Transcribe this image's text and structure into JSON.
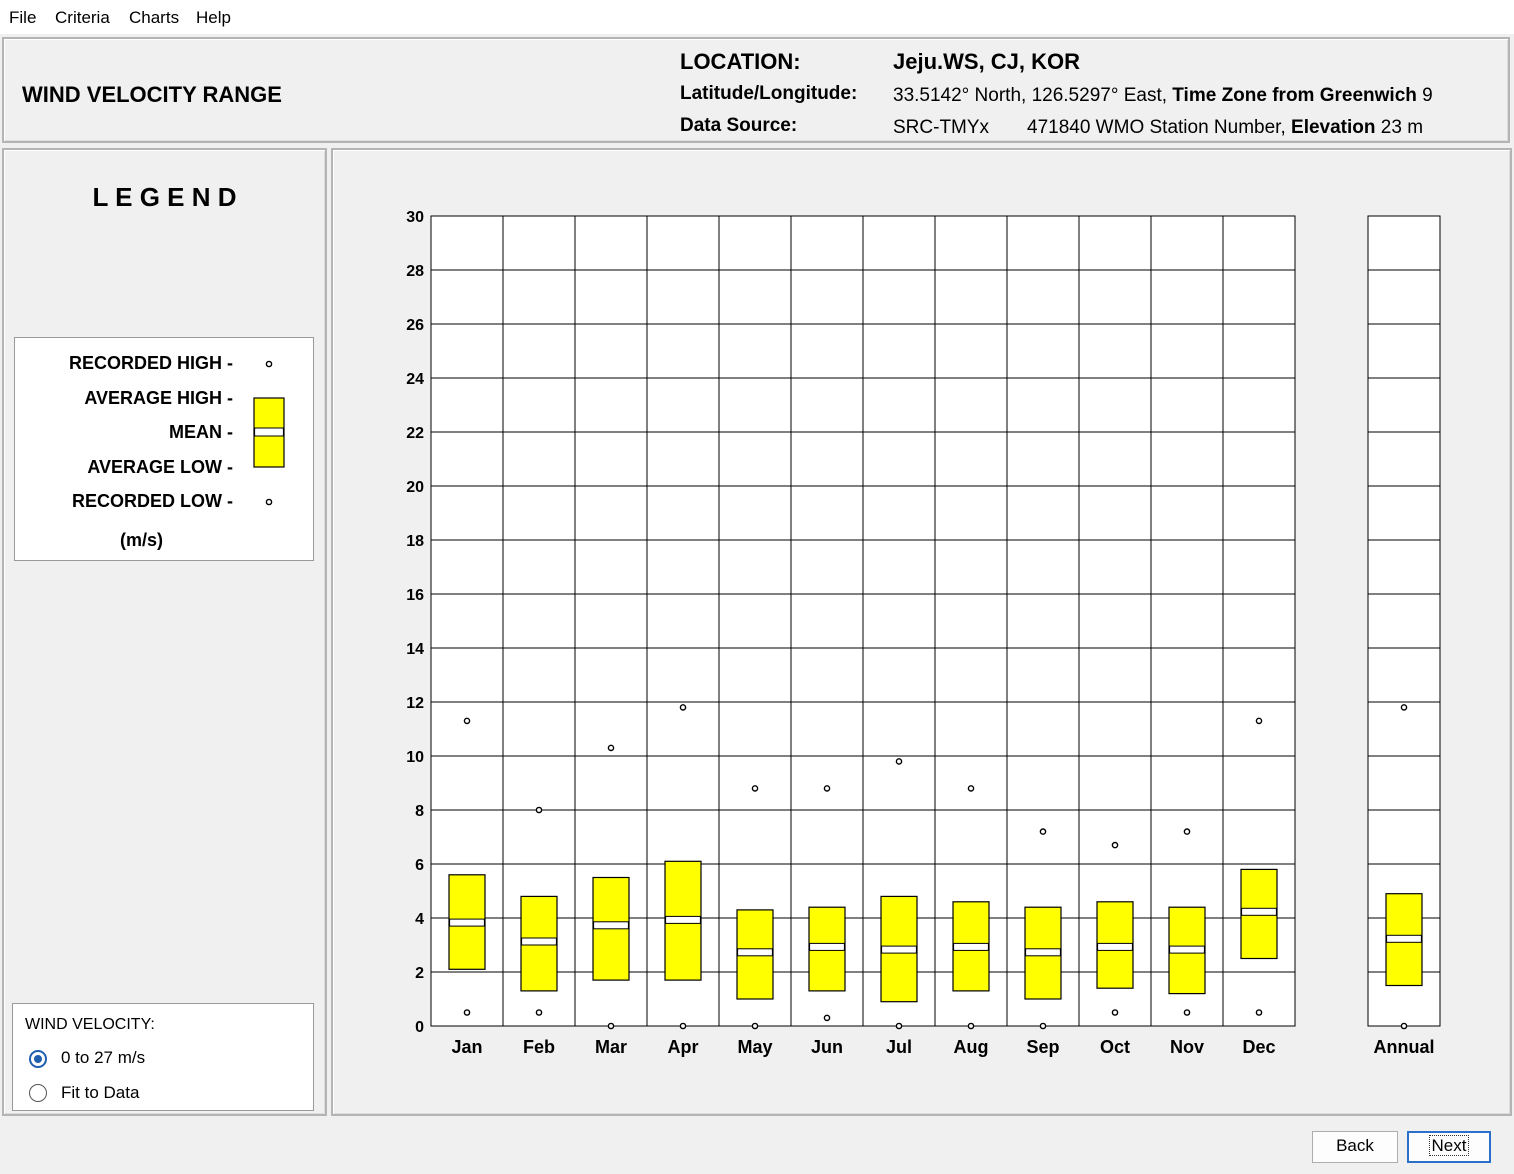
{
  "menu": [
    "File",
    "Criteria",
    "Charts",
    "Help"
  ],
  "header": {
    "title": "WIND VELOCITY RANGE",
    "location_label": "LOCATION:",
    "location_value": "Jeju.WS, CJ, KOR",
    "latlon_label": "Latitude/Longitude:",
    "latlon_value": "33.5142° North, 126.5297° East,",
    "timezone_label": "Time Zone from Greenwich",
    "timezone_value": "9",
    "source_label": "Data Source:",
    "source_value": "SRC-TMYx",
    "station_value": "471840 WMO Station Number,",
    "elevation_label": "Elevation",
    "elevation_value": "23 m"
  },
  "legend": {
    "title": "L E G E N D",
    "recorded_high": "RECORDED HIGH -",
    "average_high": "AVERAGE HIGH -",
    "mean": "MEAN -",
    "average_low": "AVERAGE LOW -",
    "recorded_low": "RECORDED LOW -",
    "units": "(m/s)"
  },
  "wind_velocity": {
    "label": "WIND VELOCITY:",
    "options": [
      "0 to 27 m/s",
      "Fit to Data"
    ],
    "selected": 0
  },
  "buttons": {
    "back": "Back",
    "next": "Next"
  },
  "colors": {
    "box_fill": "#ffff00",
    "grid": "#000000"
  },
  "chart_data": {
    "type": "box",
    "ylim": [
      0,
      30
    ],
    "yticks": [
      0,
      2,
      4,
      6,
      8,
      10,
      12,
      14,
      16,
      18,
      20,
      22,
      24,
      26,
      28,
      30
    ],
    "categories": [
      "Jan",
      "Feb",
      "Mar",
      "Apr",
      "May",
      "Jun",
      "Jul",
      "Aug",
      "Sep",
      "Oct",
      "Nov",
      "Dec"
    ],
    "recorded_high": [
      11.3,
      8.0,
      10.3,
      11.8,
      8.8,
      8.8,
      9.8,
      8.8,
      7.2,
      6.7,
      7.2,
      11.3
    ],
    "average_high": [
      5.6,
      4.8,
      5.5,
      6.1,
      4.3,
      4.4,
      4.8,
      4.6,
      4.4,
      4.6,
      4.4,
      5.8
    ],
    "mean": [
      3.7,
      3.0,
      3.6,
      3.8,
      2.6,
      2.8,
      2.7,
      2.8,
      2.6,
      2.8,
      2.7,
      4.1
    ],
    "average_low": [
      2.1,
      1.3,
      1.7,
      1.7,
      1.0,
      1.3,
      0.9,
      1.3,
      1.0,
      1.4,
      1.2,
      2.5
    ],
    "recorded_low": [
      0.5,
      0.5,
      0.0,
      0.0,
      0.0,
      0.3,
      0.0,
      0.0,
      0.0,
      0.5,
      0.5,
      0.5
    ],
    "annual": {
      "label": "Annual",
      "recorded_high": 11.8,
      "average_high": 4.9,
      "mean": 3.1,
      "average_low": 1.5,
      "recorded_low": 0.0
    }
  }
}
